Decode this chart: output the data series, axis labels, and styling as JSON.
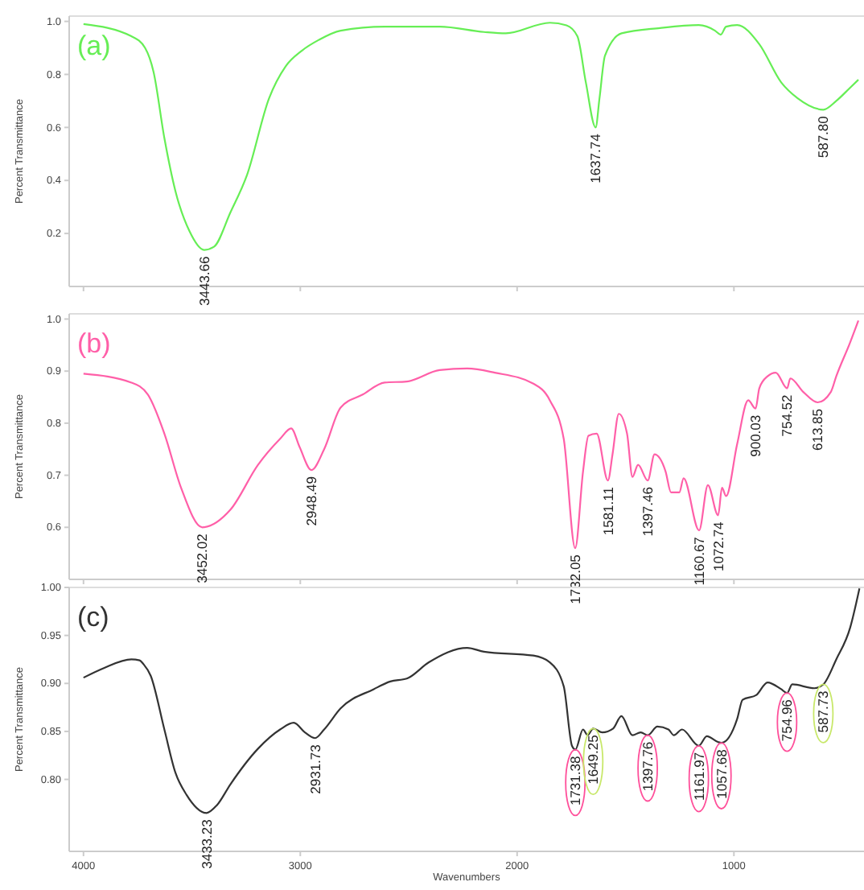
{
  "chart_data": [
    {
      "type": "line",
      "title": "(a)",
      "ylabel": "Percent Transmittance",
      "xlim": [
        4066,
        400
      ],
      "ylim": [
        0,
        1.02
      ],
      "xticks": [
        4000,
        3000,
        2000,
        1000
      ],
      "yticks": [
        0.2,
        0.4,
        0.6,
        0.8,
        {
          "value": 1,
          "label": "1.0"
        }
      ],
      "tick_labels": "y",
      "x": [
        4000,
        3779,
        3716,
        3677,
        3627,
        3576,
        3512,
        3443.66,
        3398,
        3322,
        3246,
        3144,
        3068,
        2992,
        2915,
        2814,
        2610,
        2357,
        2153,
        2052,
        1849,
        1772,
        1722,
        1683,
        1637.74,
        1620,
        1595,
        1518,
        1341,
        1162,
        1087,
        1061,
        1036,
        985,
        883,
        782,
        706,
        587.8,
        528,
        464,
        426
      ],
      "series": [
        {
          "color": "#66ee55",
          "values": [
            0.99,
            0.944,
            0.9,
            0.81,
            0.56,
            0.36,
            0.21,
            0.138,
            0.15,
            0.28,
            0.42,
            0.71,
            0.83,
            0.89,
            0.93,
            0.965,
            0.98,
            0.98,
            0.96,
            0.955,
            0.995,
            0.985,
            0.944,
            0.77,
            0.6,
            0.71,
            0.87,
            0.955,
            0.975,
            0.986,
            0.965,
            0.95,
            0.98,
            0.986,
            0.914,
            0.77,
            0.71,
            0.667,
            0.7,
            0.75,
            0.78
          ]
        }
      ],
      "annotations": [
        {
          "text": "3443.66",
          "x": 3443.66,
          "y": 0.138
        },
        {
          "text": "1637.74",
          "x": 1637.74,
          "y": 0.6
        },
        {
          "text": "587.80",
          "x": 587.8,
          "y": 0.667
        }
      ]
    },
    {
      "type": "line",
      "title": "(b)",
      "ylabel": "Percent Transmittance",
      "xlim": [
        4066,
        400
      ],
      "ylim": [
        0.5,
        1.01
      ],
      "xticks": [
        4000,
        3000,
        2000,
        1000
      ],
      "yticks": [
        0.6,
        0.7,
        0.8,
        0.9,
        {
          "value": 1,
          "label": "1.0"
        }
      ],
      "tick_labels": "y",
      "x": [
        4000,
        3779,
        3703,
        3627,
        3550,
        3452.02,
        3322,
        3195,
        3093,
        3042,
        3004,
        2948.49,
        2890,
        2814,
        2712,
        2611,
        2509,
        2357,
        2230,
        2103,
        1925,
        1849,
        1785,
        1732.05,
        1696,
        1671,
        1633,
        1581.11,
        1560,
        1531,
        1493,
        1468,
        1442,
        1397.46,
        1366,
        1315,
        1290,
        1252,
        1232,
        1160.67,
        1120,
        1072.74,
        1055,
        1036,
        985,
        934,
        900.03,
        883,
        845,
        807,
        754.52,
        740,
        680,
        613.85,
        553,
        528,
        464,
        426
      ],
      "series": [
        {
          "color": "#ff5fa8",
          "values": [
            0.895,
            0.878,
            0.855,
            0.78,
            0.676,
            0.6,
            0.634,
            0.72,
            0.77,
            0.79,
            0.755,
            0.71,
            0.75,
            0.83,
            0.855,
            0.878,
            0.88,
            0.902,
            0.905,
            0.897,
            0.876,
            0.844,
            0.77,
            0.56,
            0.707,
            0.776,
            0.78,
            0.69,
            0.74,
            0.818,
            0.78,
            0.697,
            0.72,
            0.69,
            0.74,
            0.707,
            0.667,
            0.667,
            0.694,
            0.594,
            0.681,
            0.623,
            0.676,
            0.66,
            0.76,
            0.844,
            0.828,
            0.867,
            0.89,
            0.897,
            0.867,
            0.886,
            0.86,
            0.84,
            0.86,
            0.89,
            0.955,
            0.997
          ]
        }
      ],
      "annotations": [
        {
          "text": "3452.02",
          "x": 3452.02,
          "y": 0.6
        },
        {
          "text": "2948.49",
          "x": 2948.49,
          "y": 0.71
        },
        {
          "text": "1732.05",
          "x": 1732.05,
          "y": 0.56
        },
        {
          "text": "1581.11",
          "x": 1581.11,
          "y": 0.69
        },
        {
          "text": "1397.46",
          "x": 1397.46,
          "y": 0.69
        },
        {
          "text": "1160.67",
          "x": 1160.67,
          "y": 0.594
        },
        {
          "text": "1072.74",
          "x": 1072.74,
          "y": 0.623
        },
        {
          "text": "900.03",
          "x": 900.03,
          "y": 0.828
        },
        {
          "text": "754.52",
          "x": 754.52,
          "y": 0.867
        },
        {
          "text": "613.85",
          "x": 613.85,
          "y": 0.84
        }
      ]
    },
    {
      "type": "line",
      "title": "(c)",
      "xlabel": "Wavenumbers",
      "ylabel": "Percent Transmittance",
      "xlim": [
        4066,
        400
      ],
      "ylim": [
        0.725,
        1
      ],
      "xticks": [
        4000,
        3000,
        2000,
        1000
      ],
      "yticks": [
        {
          "value": 0.8,
          "label": "0.80"
        },
        {
          "value": 0.85,
          "label": "0.85"
        },
        {
          "value": 0.9,
          "label": "0.90"
        },
        {
          "value": 0.95,
          "label": "0.95"
        },
        {
          "value": 1,
          "label": "1.00"
        }
      ],
      "x": [
        4000,
        3906,
        3779,
        3741,
        3723,
        3690,
        3627,
        3576,
        3525,
        3433.23,
        3385,
        3322,
        3195,
        3093,
        3030,
        2979,
        2931.73,
        2890,
        2814,
        2661,
        2585,
        2509,
        2407,
        2230,
        2153,
        1925,
        1849,
        1785,
        1747,
        1731.38,
        1696,
        1675,
        1649.25,
        1607,
        1557,
        1519,
        1468,
        1430,
        1397.76,
        1353,
        1302,
        1277,
        1239,
        1161.97,
        1125,
        1074,
        1057.68,
        985,
        960,
        896,
        845,
        782,
        754.96,
        731,
        629,
        587.73,
        528,
        464,
        421
      ],
      "series": [
        {
          "color": "#333333",
          "values": [
            0.906,
            0.916,
            0.925,
            0.924,
            0.92,
            0.908,
            0.852,
            0.807,
            0.784,
            0.765,
            0.773,
            0.795,
            0.832,
            0.852,
            0.859,
            0.849,
            0.843,
            0.852,
            0.874,
            0.894,
            0.902,
            0.905,
            0.922,
            0.937,
            0.933,
            0.929,
            0.922,
            0.897,
            0.835,
            0.831,
            0.852,
            0.846,
            0.853,
            0.849,
            0.853,
            0.866,
            0.846,
            0.849,
            0.846,
            0.855,
            0.852,
            0.846,
            0.852,
            0.835,
            0.845,
            0.839,
            0.838,
            0.863,
            0.883,
            0.888,
            0.901,
            0.894,
            0.89,
            0.899,
            0.895,
            0.899,
            0.925,
            0.958,
            0.999
          ]
        }
      ],
      "annotations": [
        {
          "text": "3433.23",
          "x": 3433.23,
          "y": 0.765
        },
        {
          "text": "2931.73",
          "x": 2931.73,
          "y": 0.843
        },
        {
          "text": "1731.38",
          "x": 1731.38,
          "y": 0.831
        },
        {
          "text": "1649.25",
          "x": 1649.25,
          "y": 0.853
        },
        {
          "text": "1397.76",
          "x": 1397.76,
          "y": 0.846
        },
        {
          "text": "1161.97",
          "x": 1161.97,
          "y": 0.835
        },
        {
          "text": "1057.68",
          "x": 1057.68,
          "y": 0.838
        },
        {
          "text": "754.96",
          "x": 754.96,
          "y": 0.89
        },
        {
          "text": "587.73",
          "x": 587.73,
          "y": 0.899
        }
      ]
    }
  ]
}
